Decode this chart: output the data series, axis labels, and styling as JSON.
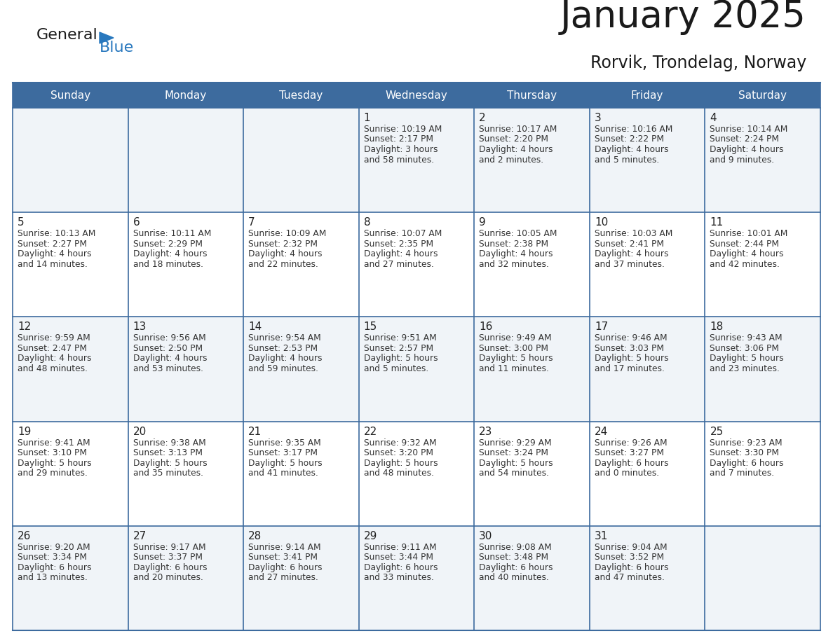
{
  "title": "January 2025",
  "subtitle": "Rorvik, Trondelag, Norway",
  "days_of_week": [
    "Sunday",
    "Monday",
    "Tuesday",
    "Wednesday",
    "Thursday",
    "Friday",
    "Saturday"
  ],
  "header_bg": "#3d6b9e",
  "header_text": "#ffffff",
  "row_bg_odd": "#f0f4f8",
  "row_bg_even": "#ffffff",
  "cell_text_color": "#333333",
  "day_num_color": "#222222",
  "border_color": "#3d6b9e",
  "title_color": "#1a1a1a",
  "subtitle_color": "#1a1a1a",
  "generalblue_text_color": "#1a1a1a",
  "generalblue_blue_color": "#2878be",
  "logo_triangle_color": "#2878be",
  "calendar_data": [
    [
      null,
      null,
      null,
      {
        "day": 1,
        "sunrise": "10:19 AM",
        "sunset": "2:17 PM",
        "daylight": "3 hours and 58 minutes."
      },
      {
        "day": 2,
        "sunrise": "10:17 AM",
        "sunset": "2:20 PM",
        "daylight": "4 hours and 2 minutes."
      },
      {
        "day": 3,
        "sunrise": "10:16 AM",
        "sunset": "2:22 PM",
        "daylight": "4 hours and 5 minutes."
      },
      {
        "day": 4,
        "sunrise": "10:14 AM",
        "sunset": "2:24 PM",
        "daylight": "4 hours and 9 minutes."
      }
    ],
    [
      {
        "day": 5,
        "sunrise": "10:13 AM",
        "sunset": "2:27 PM",
        "daylight": "4 hours and 14 minutes."
      },
      {
        "day": 6,
        "sunrise": "10:11 AM",
        "sunset": "2:29 PM",
        "daylight": "4 hours and 18 minutes."
      },
      {
        "day": 7,
        "sunrise": "10:09 AM",
        "sunset": "2:32 PM",
        "daylight": "4 hours and 22 minutes."
      },
      {
        "day": 8,
        "sunrise": "10:07 AM",
        "sunset": "2:35 PM",
        "daylight": "4 hours and 27 minutes."
      },
      {
        "day": 9,
        "sunrise": "10:05 AM",
        "sunset": "2:38 PM",
        "daylight": "4 hours and 32 minutes."
      },
      {
        "day": 10,
        "sunrise": "10:03 AM",
        "sunset": "2:41 PM",
        "daylight": "4 hours and 37 minutes."
      },
      {
        "day": 11,
        "sunrise": "10:01 AM",
        "sunset": "2:44 PM",
        "daylight": "4 hours and 42 minutes."
      }
    ],
    [
      {
        "day": 12,
        "sunrise": "9:59 AM",
        "sunset": "2:47 PM",
        "daylight": "4 hours and 48 minutes."
      },
      {
        "day": 13,
        "sunrise": "9:56 AM",
        "sunset": "2:50 PM",
        "daylight": "4 hours and 53 minutes."
      },
      {
        "day": 14,
        "sunrise": "9:54 AM",
        "sunset": "2:53 PM",
        "daylight": "4 hours and 59 minutes."
      },
      {
        "day": 15,
        "sunrise": "9:51 AM",
        "sunset": "2:57 PM",
        "daylight": "5 hours and 5 minutes."
      },
      {
        "day": 16,
        "sunrise": "9:49 AM",
        "sunset": "3:00 PM",
        "daylight": "5 hours and 11 minutes."
      },
      {
        "day": 17,
        "sunrise": "9:46 AM",
        "sunset": "3:03 PM",
        "daylight": "5 hours and 17 minutes."
      },
      {
        "day": 18,
        "sunrise": "9:43 AM",
        "sunset": "3:06 PM",
        "daylight": "5 hours and 23 minutes."
      }
    ],
    [
      {
        "day": 19,
        "sunrise": "9:41 AM",
        "sunset": "3:10 PM",
        "daylight": "5 hours and 29 minutes."
      },
      {
        "day": 20,
        "sunrise": "9:38 AM",
        "sunset": "3:13 PM",
        "daylight": "5 hours and 35 minutes."
      },
      {
        "day": 21,
        "sunrise": "9:35 AM",
        "sunset": "3:17 PM",
        "daylight": "5 hours and 41 minutes."
      },
      {
        "day": 22,
        "sunrise": "9:32 AM",
        "sunset": "3:20 PM",
        "daylight": "5 hours and 48 minutes."
      },
      {
        "day": 23,
        "sunrise": "9:29 AM",
        "sunset": "3:24 PM",
        "daylight": "5 hours and 54 minutes."
      },
      {
        "day": 24,
        "sunrise": "9:26 AM",
        "sunset": "3:27 PM",
        "daylight": "6 hours and 0 minutes."
      },
      {
        "day": 25,
        "sunrise": "9:23 AM",
        "sunset": "3:30 PM",
        "daylight": "6 hours and 7 minutes."
      }
    ],
    [
      {
        "day": 26,
        "sunrise": "9:20 AM",
        "sunset": "3:34 PM",
        "daylight": "6 hours and 13 minutes."
      },
      {
        "day": 27,
        "sunrise": "9:17 AM",
        "sunset": "3:37 PM",
        "daylight": "6 hours and 20 minutes."
      },
      {
        "day": 28,
        "sunrise": "9:14 AM",
        "sunset": "3:41 PM",
        "daylight": "6 hours and 27 minutes."
      },
      {
        "day": 29,
        "sunrise": "9:11 AM",
        "sunset": "3:44 PM",
        "daylight": "6 hours and 33 minutes."
      },
      {
        "day": 30,
        "sunrise": "9:08 AM",
        "sunset": "3:48 PM",
        "daylight": "6 hours and 40 minutes."
      },
      {
        "day": 31,
        "sunrise": "9:04 AM",
        "sunset": "3:52 PM",
        "daylight": "6 hours and 47 minutes."
      },
      null
    ]
  ]
}
